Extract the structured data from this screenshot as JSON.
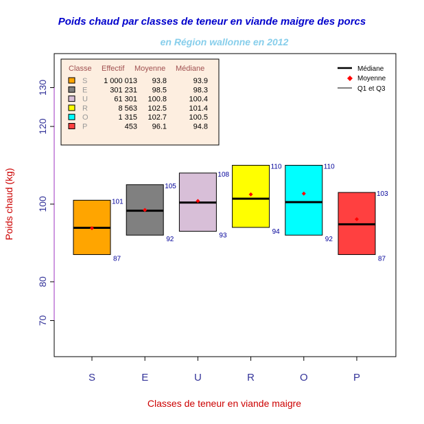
{
  "chart_data": {
    "type": "box",
    "title": "Poids chaud par classes de teneur en viande maigre des porcs",
    "subtitle": "en Région wallonne en 2012",
    "xlabel": "Classes de teneur en viande maigre",
    "ylabel": "Poids chaud (kg)",
    "ylim": [
      60,
      139
    ],
    "yticks": [
      70,
      80,
      100,
      120,
      130
    ],
    "categories": [
      "S",
      "E",
      "U",
      "R",
      "O",
      "P"
    ],
    "colors": [
      "#ffa500",
      "#808080",
      "#d8bfd8",
      "#ffff00",
      "#00ffff",
      "#ff4040"
    ],
    "q1": [
      87,
      92,
      93,
      94,
      92,
      87
    ],
    "q3": [
      101,
      105,
      108,
      110,
      110,
      103
    ],
    "median": [
      93.9,
      98.3,
      100.4,
      101.4,
      100.5,
      94.8
    ],
    "mean": [
      93.8,
      98.5,
      100.8,
      102.5,
      102.7,
      96.1
    ],
    "table": {
      "headers": [
        "Classe",
        "Effectif",
        "Moyenne",
        "Médiane"
      ],
      "rows": [
        [
          "S",
          "1 000 013",
          "93.8",
          "93.9"
        ],
        [
          "E",
          "301 231",
          "98.5",
          "98.3"
        ],
        [
          "U",
          "61 301",
          "100.8",
          "100.4"
        ],
        [
          "R",
          "8 563",
          "102.5",
          "101.4"
        ],
        [
          "O",
          "1 315",
          "102.7",
          "100.5"
        ],
        [
          "P",
          "453",
          "96.1",
          "94.8"
        ]
      ]
    },
    "legend": {
      "position": "top-right",
      "items": [
        "Médiane",
        "Moyenne",
        "Q1 et Q3"
      ]
    }
  }
}
